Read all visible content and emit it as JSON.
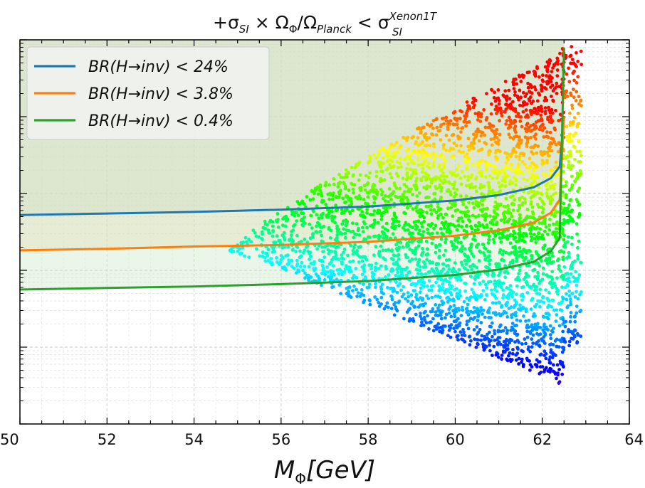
{
  "chart_data": {
    "type": "scatter",
    "title": {
      "prefix": "+σ",
      "sub1": "SI",
      "mid": " × Ω",
      "sub2": "Φ",
      "mid2": "/Ω",
      "sub3": "Planck",
      "mid3": " < σ",
      "sup4": "Xenon1T",
      "sub4": "SI"
    },
    "xlabel": {
      "main": "M",
      "sub": "Φ",
      "rest": "[GeV]"
    },
    "ylabel": "",
    "xlim": [
      50,
      64
    ],
    "x_ticks": [
      50,
      52,
      54,
      56,
      58,
      60,
      62,
      64
    ],
    "x_tick_labels": [
      "50",
      "52",
      "54",
      "56",
      "58",
      "60",
      "62",
      "64"
    ],
    "y_scale": "log",
    "y_decades_visible": 5,
    "y_tick_labels_shown": false,
    "grid": true,
    "legend_position": "top-left",
    "colormap": "hsv (magenta → blue → cyan → green → yellow → orange → red)",
    "series": [
      {
        "name": "BR(H→inv) < 24%",
        "color": "#1f77b4",
        "x": [
          50,
          52,
          54,
          56,
          58,
          60,
          61,
          61.8,
          62.2,
          62.4,
          62.5
        ],
        "y_decade": [
          2.72,
          2.74,
          2.76,
          2.79,
          2.83,
          2.91,
          2.98,
          3.08,
          3.2,
          3.35,
          4.0
        ]
      },
      {
        "name": "BR(H→inv) < 3.8%",
        "color": "#ff7f0e",
        "x": [
          50,
          52,
          54,
          56,
          58,
          60,
          61,
          61.8,
          62.2,
          62.4,
          62.5
        ],
        "y_decade": [
          2.26,
          2.28,
          2.31,
          2.33,
          2.37,
          2.45,
          2.52,
          2.62,
          2.75,
          2.92,
          4.0
        ]
      },
      {
        "name": "BR(H→inv) < 0.4%",
        "color": "#2ca02c",
        "x": [
          50,
          52,
          54,
          56,
          58,
          60,
          61,
          61.8,
          62.2,
          62.4,
          62.5
        ],
        "y_decade": [
          1.75,
          1.77,
          1.79,
          1.82,
          1.86,
          1.94,
          2.01,
          2.11,
          2.25,
          2.42,
          4.9
        ]
      }
    ],
    "scatter_region": {
      "tip_x": 54.8,
      "tip_y_decade": 2.25,
      "edge_x": 62.5,
      "upper_y_decade": 4.85,
      "lower_y_decade": 0.5
    }
  }
}
